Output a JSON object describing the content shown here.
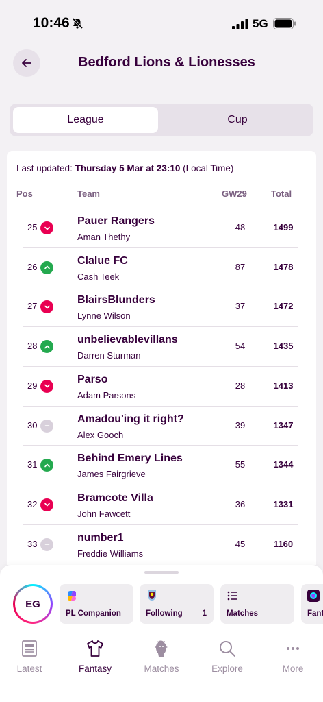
{
  "status_bar": {
    "time": "10:46",
    "network": "5G"
  },
  "header": {
    "title": "Bedford Lions & Lionesses"
  },
  "tabs": {
    "league": "League",
    "cup": "Cup"
  },
  "table": {
    "last_updated_prefix": "Last updated: ",
    "last_updated_value": "Thursday 5 Mar at 23:10",
    "last_updated_suffix": " (Local Time)",
    "columns": {
      "pos": "Pos",
      "team": "Team",
      "gw": "GW29",
      "total": "Total"
    },
    "rows": [
      {
        "pos": "25",
        "movement": "down",
        "team": "Pauer Rangers",
        "manager": "Aman Thethy",
        "gw": "48",
        "total": "1499"
      },
      {
        "pos": "26",
        "movement": "up",
        "team": "Clalue FC",
        "manager": "Cash Teek",
        "gw": "87",
        "total": "1478"
      },
      {
        "pos": "27",
        "movement": "down",
        "team": "BlairsBlunders",
        "manager": "Lynne Wilson",
        "gw": "37",
        "total": "1472"
      },
      {
        "pos": "28",
        "movement": "up",
        "team": "unbelievablevillans",
        "manager": "Darren Sturman",
        "gw": "54",
        "total": "1435"
      },
      {
        "pos": "29",
        "movement": "down",
        "team": "Parso",
        "manager": "Adam Parsons",
        "gw": "28",
        "total": "1413"
      },
      {
        "pos": "30",
        "movement": "same",
        "team": "Amadou'ing it right?",
        "manager": "Alex Gooch",
        "gw": "39",
        "total": "1347"
      },
      {
        "pos": "31",
        "movement": "up",
        "team": "Behind Emery Lines",
        "manager": "James Fairgrieve",
        "gw": "55",
        "total": "1344"
      },
      {
        "pos": "32",
        "movement": "down",
        "team": "Bramcote Villa",
        "manager": "John Fawcett",
        "gw": "36",
        "total": "1331"
      },
      {
        "pos": "33",
        "movement": "same",
        "team": "number1",
        "manager": "Freddie Williams",
        "gw": "45",
        "total": "1160"
      }
    ]
  },
  "bottom_sheet": {
    "avatar_initials": "EG",
    "chips": [
      {
        "label": "PL Companion",
        "icon": "copilot-icon"
      },
      {
        "label": "Following",
        "count": "1",
        "icon": "club-crest-icon"
      },
      {
        "label": "Matches",
        "icon": "list-icon"
      },
      {
        "label": "Fant",
        "icon": "pl-lion-icon"
      }
    ]
  },
  "tabbar": {
    "latest": "Latest",
    "fantasy": "Fantasy",
    "matches": "Matches",
    "explore": "Explore",
    "more": "More"
  },
  "colors": {
    "brand_purple": "#37003c",
    "down": "#e90052",
    "up": "#24a94f",
    "same": "#d8d0db"
  }
}
